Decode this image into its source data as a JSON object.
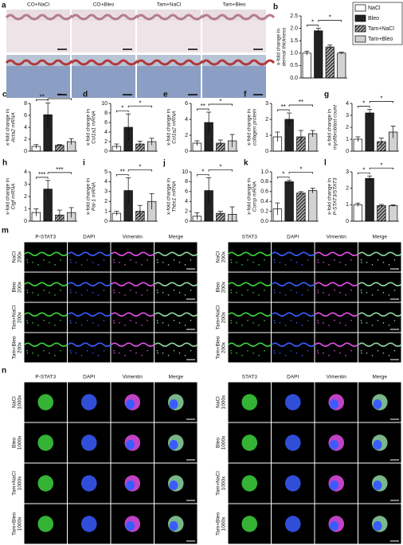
{
  "style": {
    "colors": [
      "#ffffff",
      "#222222",
      "#6e6e6e",
      "#d2d2d2"
    ],
    "hatched": [
      false,
      false,
      true,
      false
    ]
  },
  "panel_a": {
    "label": "a",
    "columns": [
      "CO+NaCl",
      "CO+Bleo",
      "Tam+NaCl",
      "Tam+Bleo"
    ]
  },
  "panel_m": {
    "label": "m",
    "blocks": [
      {
        "columns": [
          "P-STAT3",
          "DAPI",
          "Vimentin",
          "Merge"
        ],
        "rows": [
          [
            "NaCl",
            "200x"
          ],
          [
            "Bleo",
            "200x"
          ],
          [
            "Tam+NaCl",
            "200x"
          ],
          [
            "Tam+Bleo",
            "200x"
          ]
        ]
      },
      {
        "columns": [
          "STAT3",
          "DAPI",
          "Vimentin",
          "Merge"
        ],
        "rows": [
          [
            "NaCl",
            "200x"
          ],
          [
            "Bleo",
            "200x"
          ],
          [
            "Tam+NaCl",
            "200x"
          ],
          [
            "Tam+Bleo",
            "200x"
          ]
        ]
      }
    ]
  },
  "panel_n": {
    "label": "n",
    "blocks": [
      {
        "columns": [
          "P-STAT3",
          "DAPI",
          "Vimentin",
          "Merge"
        ],
        "rows": [
          [
            "NaCl",
            "1000x"
          ],
          [
            "Bleo",
            "1000x"
          ],
          [
            "Tam+NaCl",
            "1000x"
          ],
          [
            "Tam+Bleo",
            "1000x"
          ]
        ]
      },
      {
        "columns": [
          "STAT3",
          "DAPI",
          "Vimentin",
          "Merge"
        ],
        "rows": [
          [
            "NaCl",
            "1000x"
          ],
          [
            "Bleo",
            "1000x"
          ],
          [
            "Tam+NaCl",
            "1000x"
          ],
          [
            "Tam+Bleo",
            "1000x"
          ]
        ]
      }
    ]
  },
  "chart_data": [
    {
      "type": "bar",
      "panel": "b",
      "ylabel": [
        "x-fold change in",
        "dermal thickness"
      ],
      "categories": [
        "NaCl",
        "Bleo",
        "Tam+NaCl",
        "Tam+Bleo"
      ],
      "values": [
        1.0,
        1.9,
        1.25,
        1.0
      ],
      "errors": [
        0.08,
        0.1,
        0.08,
        0.04
      ],
      "ylim": [
        0,
        2.5
      ],
      "yticks": [
        {
          "value": 0,
          "label": "0.0"
        },
        0.5,
        {
          "value": 1,
          "label": "1.0"
        },
        1.5,
        {
          "value": 2,
          "label": "2.0"
        },
        2.5
      ],
      "brackets": [
        {
          "text": "*",
          "between": [
            0,
            1
          ]
        },
        {
          "text": "*",
          "between": [
            1,
            3
          ]
        }
      ]
    },
    {
      "type": "bar",
      "panel": "c",
      "ylabel": [
        "x-fold change in",
        "Acta2 mRNA"
      ],
      "values": [
        0.8,
        6.1,
        1.0,
        1.6
      ],
      "errors": [
        0.3,
        2.0,
        0.1,
        0.5
      ],
      "ylim": [
        0,
        8
      ],
      "yticks": [
        0,
        2,
        4,
        6,
        8
      ],
      "brackets": [
        {
          "text": "**",
          "between": [
            0,
            1
          ]
        },
        {
          "text": "**",
          "between": [
            1,
            3
          ]
        }
      ]
    },
    {
      "type": "bar",
      "panel": "d",
      "ylabel": [
        "x-fold change in",
        "Col1a1 mRNA"
      ],
      "values": [
        1.0,
        5.0,
        1.5,
        2.0
      ],
      "errors": [
        0.5,
        2.8,
        0.6,
        0.7
      ],
      "ylim": [
        0,
        10
      ],
      "yticks": [
        0,
        2,
        4,
        6,
        8,
        10
      ],
      "brackets": [
        {
          "text": "*",
          "between": [
            0,
            1
          ]
        },
        {
          "text": "*",
          "between": [
            1,
            3
          ]
        }
      ]
    },
    {
      "type": "bar",
      "panel": "e",
      "ylabel": [
        "x-fold change in",
        "Col1a2 mRNA"
      ],
      "values": [
        1.0,
        3.6,
        1.0,
        1.3
      ],
      "errors": [
        0.3,
        1.3,
        0.4,
        0.8
      ],
      "ylim": [
        0,
        6
      ],
      "yticks": [
        0,
        2,
        4,
        6
      ],
      "brackets": [
        {
          "text": "**",
          "between": [
            0,
            1
          ]
        },
        {
          "text": "*",
          "between": [
            1,
            3
          ]
        }
      ]
    },
    {
      "type": "bar",
      "panel": "f",
      "ylabel": [
        "x-fold change in",
        "collagen protein"
      ],
      "values": [
        0.9,
        2.0,
        0.9,
        1.1
      ],
      "errors": [
        0.3,
        0.4,
        0.4,
        0.2
      ],
      "ylim": [
        0,
        3
      ],
      "yticks": [
        0,
        1,
        2,
        3
      ],
      "brackets": [
        {
          "text": "**",
          "between": [
            0,
            1
          ]
        },
        {
          "text": "**",
          "between": [
            1,
            3
          ]
        }
      ]
    },
    {
      "type": "bar",
      "panel": "g",
      "ylabel": [
        "x-fold change in",
        "myofibroblast count"
      ],
      "values": [
        1.0,
        3.2,
        0.8,
        1.6
      ],
      "errors": [
        0.2,
        0.3,
        0.3,
        0.5
      ],
      "ylim": [
        0,
        4
      ],
      "yticks": [
        0,
        1,
        2,
        3,
        4
      ],
      "brackets": [
        {
          "text": "*",
          "between": [
            0,
            1
          ]
        },
        {
          "text": "*",
          "between": [
            1,
            3
          ]
        }
      ]
    },
    {
      "type": "bar",
      "panel": "h",
      "ylabel": [
        "x-fold change in",
        "Ctgf mRNA"
      ],
      "values": [
        0.7,
        2.6,
        0.5,
        0.7
      ],
      "errors": [
        0.3,
        0.7,
        0.4,
        0.4
      ],
      "ylim": [
        0,
        4
      ],
      "yticks": [
        0,
        1,
        2,
        3,
        4
      ],
      "brackets": [
        {
          "text": "***",
          "between": [
            0,
            1
          ]
        },
        {
          "text": "***",
          "between": [
            1,
            3
          ]
        }
      ]
    },
    {
      "type": "bar",
      "panel": "i",
      "ylabel": [
        "x-fold change in",
        "Pai-1 mRNA"
      ],
      "values": [
        0.8,
        3.1,
        1.0,
        2.0
      ],
      "errors": [
        0.2,
        1.3,
        0.6,
        0.8
      ],
      "ylim": [
        0,
        5
      ],
      "yticks": [
        0,
        1,
        2,
        3,
        4,
        5
      ],
      "brackets": [
        {
          "text": "**",
          "between": [
            0,
            1
          ]
        },
        {
          "text": "*",
          "between": [
            1,
            3
          ]
        }
      ]
    },
    {
      "type": "bar",
      "panel": "j",
      "ylabel": [
        "x-fold change in",
        "Thbs1 mRNA"
      ],
      "values": [
        1.0,
        6.2,
        1.6,
        1.4
      ],
      "errors": [
        0.7,
        2.6,
        0.4,
        1.5
      ],
      "ylim": [
        0,
        10
      ],
      "yticks": [
        0,
        2,
        4,
        6,
        8,
        10
      ],
      "brackets": [
        {
          "text": "*",
          "between": [
            0,
            1
          ]
        },
        {
          "text": "*",
          "between": [
            1,
            3
          ]
        }
      ]
    },
    {
      "type": "bar",
      "panel": "k",
      "ylabel": [
        "x-fold change in",
        "Comp mRNA"
      ],
      "values": [
        0.25,
        0.8,
        0.57,
        0.62
      ],
      "errors": [
        0.12,
        0.03,
        0.03,
        0.05
      ],
      "ylim": [
        0,
        1
      ],
      "yticks": [
        {
          "value": 0,
          "label": "0.0"
        },
        0.2,
        0.4,
        0.6,
        0.8,
        {
          "value": 1,
          "label": "1.0"
        }
      ],
      "brackets": [
        {
          "text": "*",
          "between": [
            0,
            1
          ]
        },
        {
          "text": "*",
          "between": [
            1,
            3
          ]
        }
      ]
    },
    {
      "type": "bar",
      "panel": "l",
      "ylabel": [
        "x-fold change in",
        "P-STAT3/STAT3"
      ],
      "values": [
        1.0,
        2.6,
        0.95,
        0.95
      ],
      "errors": [
        0.1,
        0.15,
        0.07,
        0.05
      ],
      "ylim": [
        0,
        3
      ],
      "yticks": [
        0,
        1,
        2,
        3
      ],
      "brackets": [
        {
          "text": "*",
          "between": [
            0,
            1
          ]
        },
        {
          "text": "*",
          "between": [
            1,
            3
          ]
        }
      ]
    }
  ]
}
